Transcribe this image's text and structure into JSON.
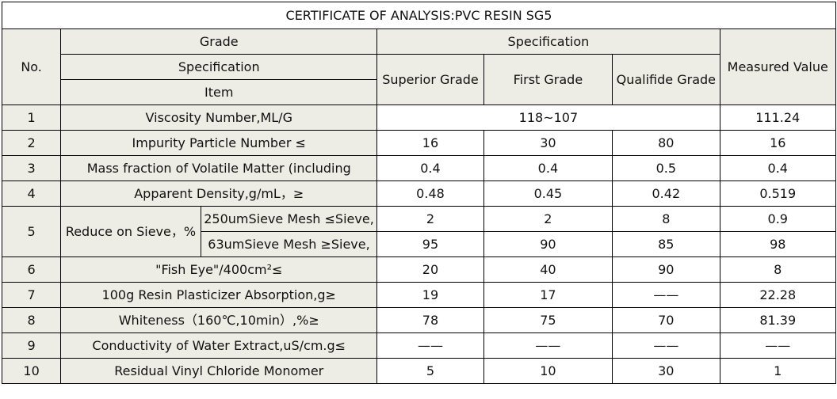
{
  "title": "CERTIFICATE OF ANALYSIS:PVC RESIN SG5",
  "header": {
    "no": "No.",
    "grade": "Grade",
    "specification": "Specification",
    "item": "Item",
    "spec_group": "Specification",
    "superior": "Superior Grade",
    "first": "First Grade",
    "qualified": "Qualifide Grade",
    "measured": "Measured Value"
  },
  "rows": [
    {
      "no": "1",
      "item": "Viscosity Number,ML/G",
      "spec_merged": "118~107",
      "measured": "111.24"
    },
    {
      "no": "2",
      "item": "Impurity Particle Number ≤",
      "superior": "16",
      "first": "30",
      "qualified": "80",
      "measured": "16"
    },
    {
      "no": "3",
      "item": "Mass fraction of Volatile Matter (including",
      "superior": "0.4",
      "first": "0.4",
      "qualified": "0.5",
      "measured": "0.4"
    },
    {
      "no": "4",
      "item": "Apparent Density,g/mL，≥",
      "superior": "0.48",
      "first": "0.45",
      "qualified": "0.42",
      "measured": "0.519"
    },
    {
      "no": "5",
      "item": "Reduce on Sieve，%",
      "sub": [
        {
          "label": "250umSieve Mesh ≤Sieve,",
          "superior": "2",
          "first": "2",
          "qualified": "8",
          "measured": "0.9"
        },
        {
          "label": "63umSieve Mesh ≥Sieve,",
          "superior": "95",
          "first": "90",
          "qualified": "85",
          "measured": "98"
        }
      ]
    },
    {
      "no": "6",
      "item": "\"Fish Eye\"/400cm²≤",
      "superior": "20",
      "first": "40",
      "qualified": "90",
      "measured": "8"
    },
    {
      "no": "7",
      "item": "100g Resin Plasticizer Absorption,g≥",
      "superior": "19",
      "first": "17",
      "qualified": "——",
      "measured": "22.28"
    },
    {
      "no": "8",
      "item": "Whiteness（160℃,10min）,%≥",
      "superior": "78",
      "first": "75",
      "qualified": "70",
      "measured": "81.39"
    },
    {
      "no": "9",
      "item": "Conductivity of Water Extract,uS/cm.g≤",
      "superior": "——",
      "first": "——",
      "qualified": "——",
      "measured": "——"
    },
    {
      "no": "10",
      "item": "Residual Vinyl Chloride Monomer",
      "superior": "5",
      "first": "10",
      "qualified": "30",
      "measured": "1"
    }
  ]
}
